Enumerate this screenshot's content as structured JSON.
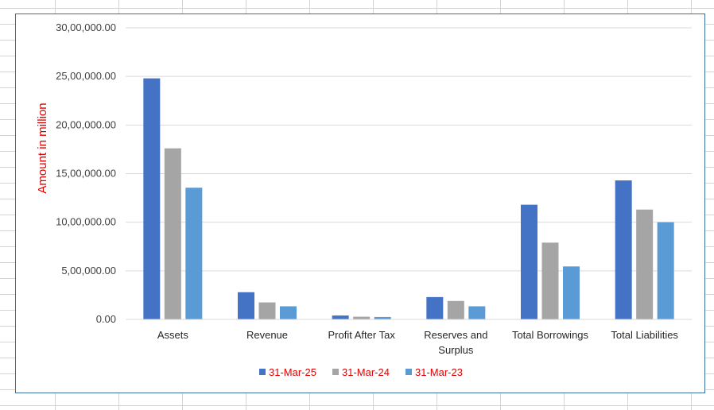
{
  "chart_data": {
    "type": "bar",
    "title": "",
    "xlabel": "",
    "ylabel": "Amount in million",
    "ylim": [
      0,
      3000000
    ],
    "yticks": [
      0,
      500000,
      1000000,
      1500000,
      2000000,
      2500000,
      3000000
    ],
    "ytick_labels": [
      "0.00",
      "5,00,000.00",
      "10,00,000.00",
      "15,00,000.00",
      "20,00,000.00",
      "25,00,000.00",
      "30,00,000.00"
    ],
    "grid": true,
    "legend_position": "bottom",
    "categories": [
      "Assets",
      "Revenue",
      "Profit After Tax",
      "Reserves and Surplus",
      "Total Borrowings",
      "Total Liabilities"
    ],
    "category_lines": [
      [
        "Assets"
      ],
      [
        "Revenue"
      ],
      [
        "Profit After Tax"
      ],
      [
        "Reserves and",
        "Surplus"
      ],
      [
        "Total Borrowings"
      ],
      [
        "Total Liabilities"
      ]
    ],
    "series": [
      {
        "name": "31-Mar-25",
        "color": "#4472c4",
        "values": [
          2480000,
          280000,
          40000,
          230000,
          1180000,
          1430000
        ]
      },
      {
        "name": "31-Mar-24",
        "color": "#a5a5a5",
        "values": [
          1760000,
          175000,
          28000,
          190000,
          790000,
          1130000
        ]
      },
      {
        "name": "31-Mar-23",
        "color": "#5b9bd5",
        "values": [
          1355000,
          135000,
          25000,
          135000,
          545000,
          1000000
        ]
      }
    ]
  }
}
